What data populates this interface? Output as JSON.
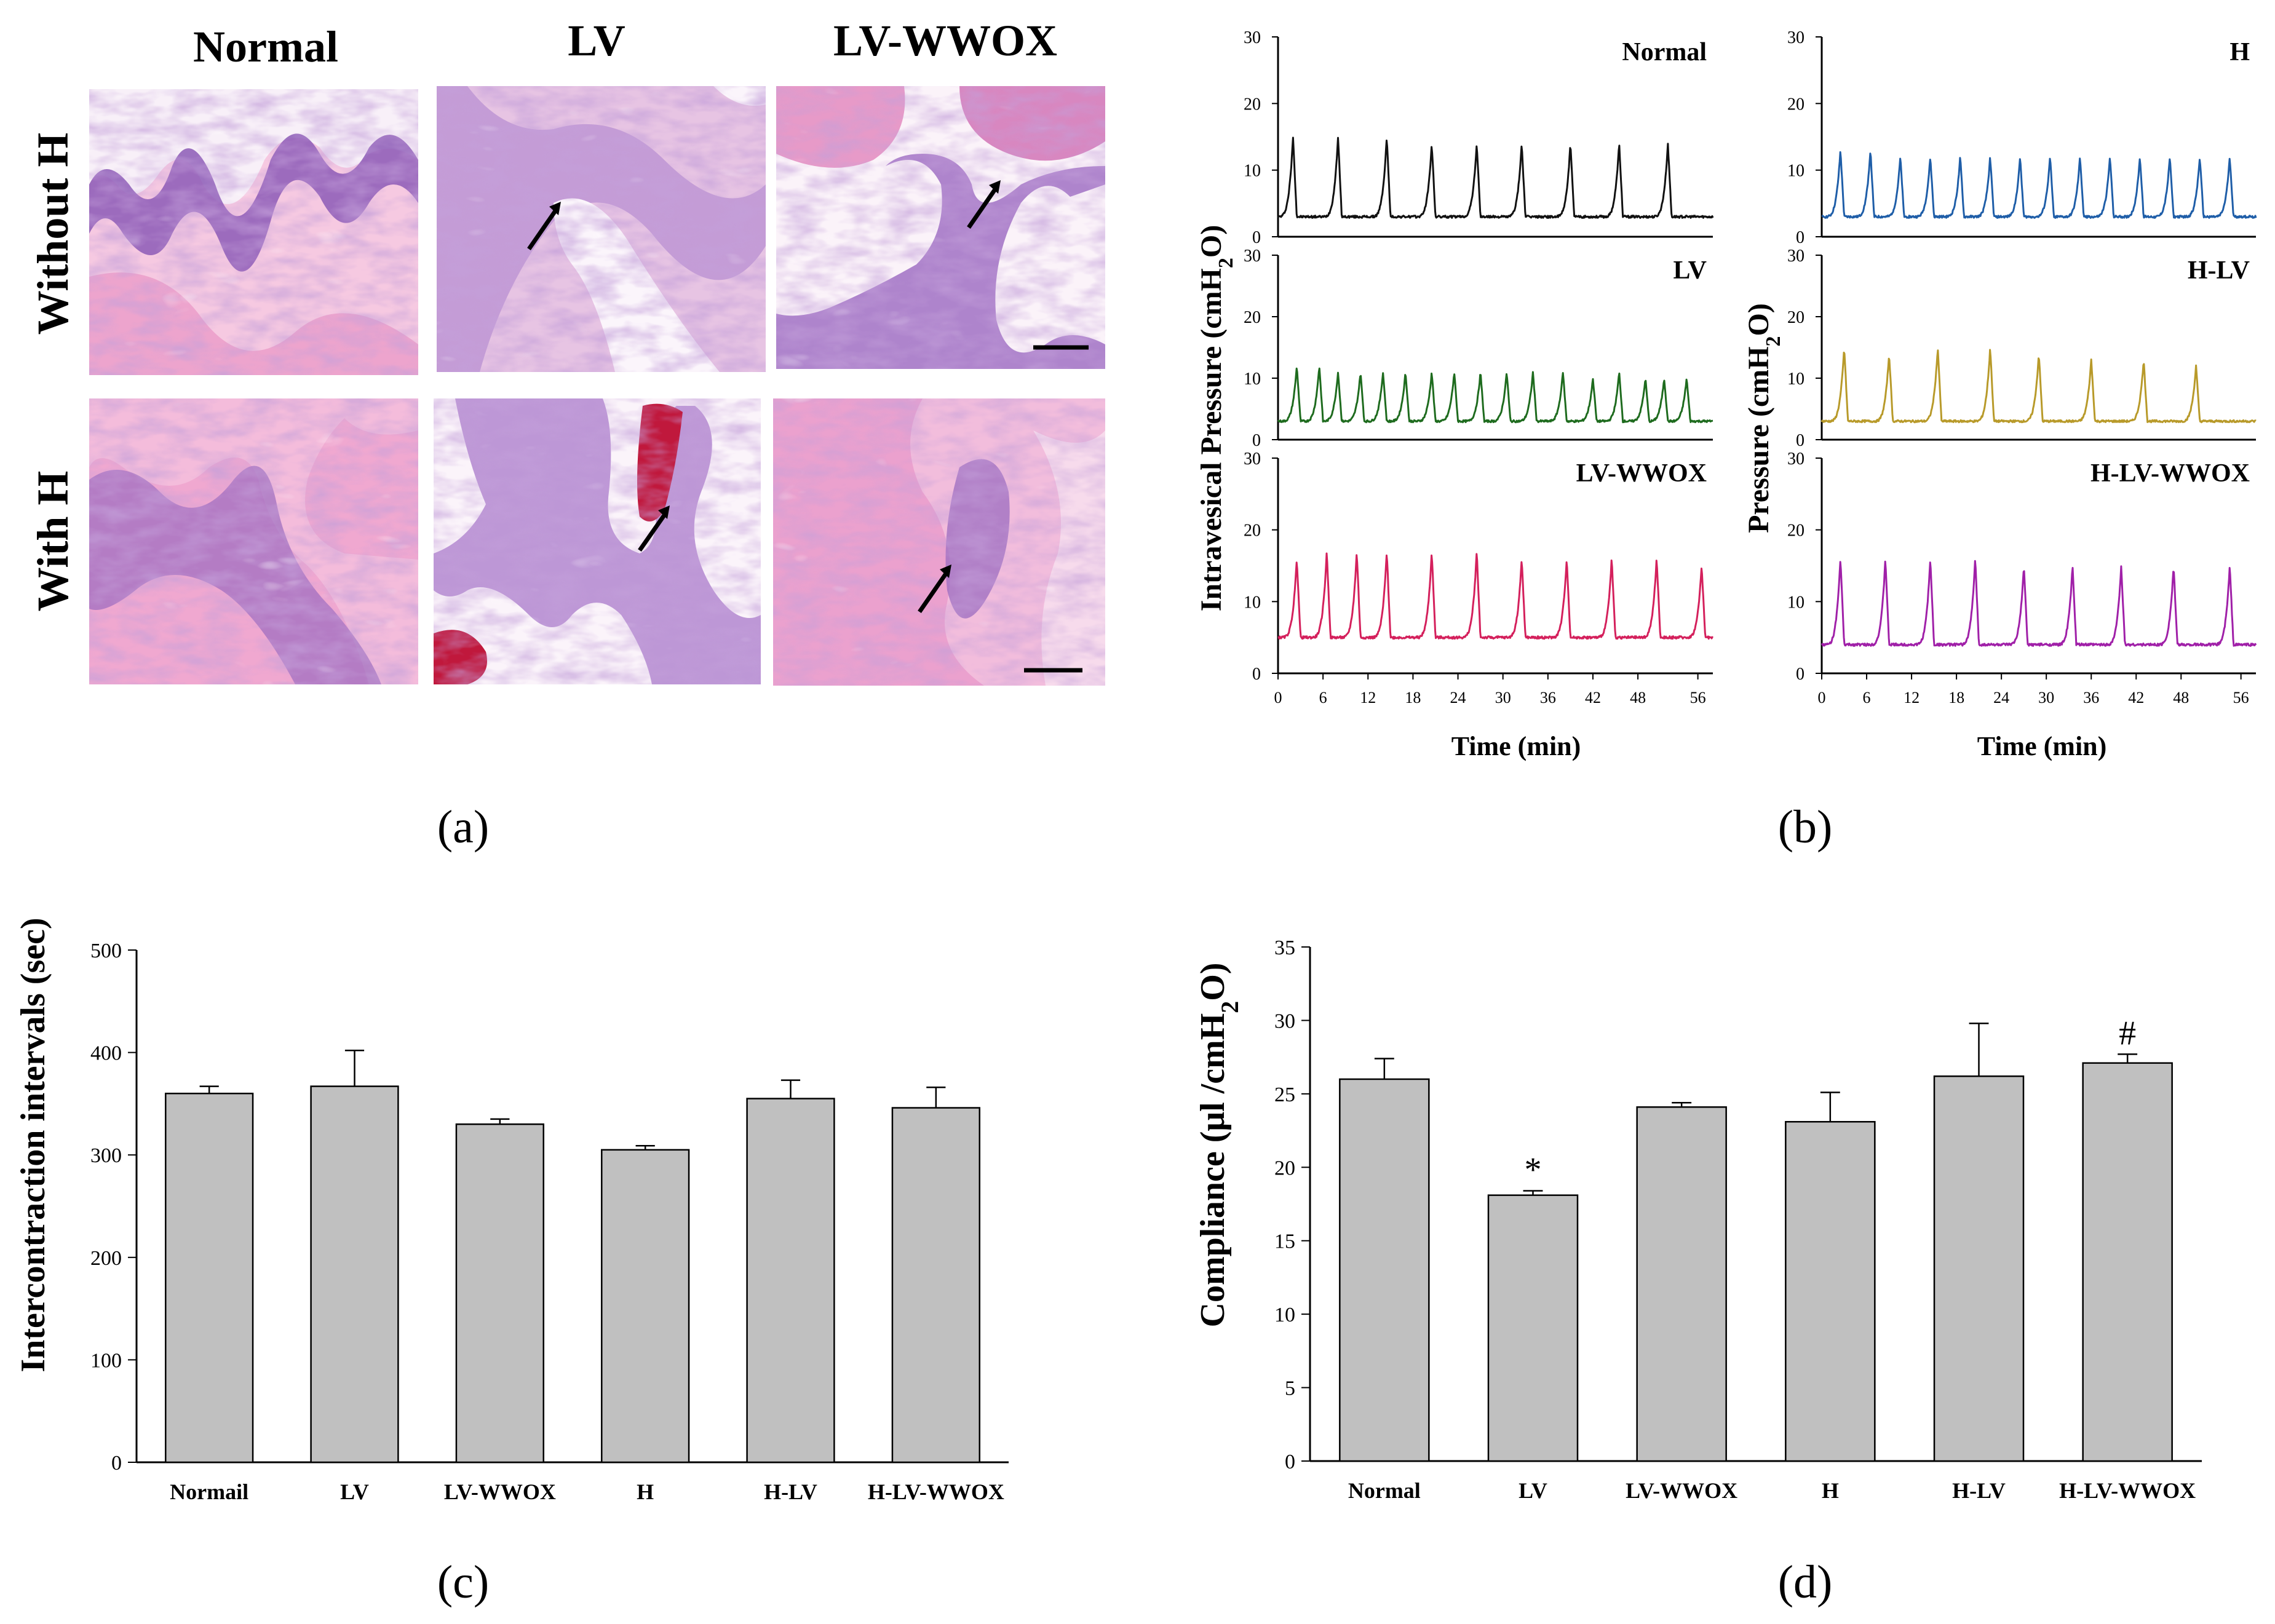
{
  "figure": {
    "panel_labels": [
      "(a)",
      "(b)",
      "(c)",
      "(d)"
    ]
  },
  "histology": {
    "col_headers": [
      "Normal",
      "LV",
      "LV-WWOX"
    ],
    "row_headers": [
      "Without H",
      "With H"
    ],
    "tiles": [
      {
        "group": "Normal",
        "condition": "Without H",
        "arrow": false,
        "scale_bar": false,
        "blood": false
      },
      {
        "group": "LV",
        "condition": "Without H",
        "arrow": true,
        "scale_bar": false,
        "blood": false
      },
      {
        "group": "LV-WWOX",
        "condition": "Without H",
        "arrow": true,
        "scale_bar": true,
        "blood": false
      },
      {
        "group": "Normal",
        "condition": "With H",
        "arrow": false,
        "scale_bar": false,
        "blood": false
      },
      {
        "group": "LV",
        "condition": "With H",
        "arrow": true,
        "scale_bar": false,
        "blood": true
      },
      {
        "group": "LV-WWOX",
        "condition": "With H",
        "arrow": true,
        "scale_bar": true,
        "blood": false
      }
    ],
    "colors": {
      "pink": "#f2b8d6",
      "purple": "#8a5fb0",
      "blood": "#c0183c"
    }
  },
  "cystometry": {
    "y_ticks": [
      0,
      10,
      20,
      30
    ],
    "ylim": [
      0,
      30
    ],
    "x_ticks": [
      0,
      6,
      12,
      18,
      24,
      30,
      36,
      42,
      48,
      56
    ],
    "xlim": [
      0,
      58
    ],
    "left": {
      "ylabel": "Intravesical Pressure (cmH2O)",
      "xlabel": "Time (min)",
      "traces": [
        {
          "name": "Normal",
          "color": "#111111",
          "baseline": 3,
          "peaks": [
            2,
            8,
            14.5,
            20.5,
            26.5,
            32.5,
            39,
            45.5,
            52
          ],
          "peak_heights": [
            15,
            15,
            15,
            14,
            14,
            14,
            14,
            14,
            14
          ]
        },
        {
          "name": "LV",
          "color": "#1e6b1e",
          "baseline": 3,
          "peaks": [
            2.5,
            5.5,
            8,
            11,
            14,
            17,
            20.5,
            23.5,
            27,
            30.5,
            34,
            38,
            42,
            45.5,
            49,
            51.5,
            54.5
          ],
          "peak_heights": [
            12,
            12,
            11,
            11,
            11,
            11,
            11,
            11,
            11,
            11,
            11,
            11,
            10,
            11,
            10,
            10,
            10
          ]
        },
        {
          "name": "LV-WWOX",
          "color": "#d4205c",
          "baseline": 5,
          "peaks": [
            2.5,
            6.5,
            10.5,
            14.5,
            20.5,
            26.5,
            32.5,
            38.5,
            44.5,
            50.5,
            56.5
          ],
          "peak_heights": [
            16,
            17,
            17,
            17,
            17,
            17,
            16,
            16,
            16,
            16,
            15
          ]
        }
      ]
    },
    "right": {
      "ylabel": "Pressure (cmH2O)",
      "xlabel": "Time (min)",
      "traces": [
        {
          "name": "H",
          "color": "#1f5ea8",
          "baseline": 3,
          "peaks": [
            2.5,
            6.5,
            10.5,
            14.5,
            18.5,
            22.5,
            26.5,
            30.5,
            34.5,
            38.5,
            42.5,
            46.5,
            50.5,
            54.5
          ],
          "peak_heights": [
            13,
            13,
            12,
            12,
            12,
            12,
            12,
            12,
            12,
            12,
            12,
            12,
            12,
            12
          ]
        },
        {
          "name": "H-LV",
          "color": "#b89a2a",
          "baseline": 3,
          "peaks": [
            3,
            9,
            15.5,
            22.5,
            29,
            36,
            43,
            50
          ],
          "peak_heights": [
            15,
            14,
            15,
            15,
            14,
            13,
            13,
            12
          ]
        },
        {
          "name": "H-LV-WWOX",
          "color": "#a020a8",
          "baseline": 4,
          "peaks": [
            2.5,
            8.5,
            14.5,
            20.5,
            27,
            33.5,
            40,
            47,
            54.5
          ],
          "peak_heights": [
            16,
            16,
            16,
            16,
            15,
            15,
            15,
            15,
            15
          ]
        }
      ]
    }
  },
  "chart_data": [
    {
      "type": "bar",
      "panel": "(c)",
      "title": "",
      "ylabel": "Intercontraction intervals (sec)",
      "xlabel": "",
      "categories": [
        "Normail",
        "LV",
        "LV-WWOX",
        "H",
        "H-LV",
        "H-LV-WWOX"
      ],
      "values": [
        360,
        367,
        330,
        305,
        355,
        346
      ],
      "errors": [
        7,
        35,
        5,
        4,
        18,
        20
      ],
      "annotations": [
        "",
        "",
        "",
        "",
        "",
        ""
      ],
      "ylim": [
        0,
        500
      ],
      "yticks": [
        0,
        100,
        200,
        300,
        400,
        500
      ],
      "bar_color": "#c0c0c0",
      "grid": false
    },
    {
      "type": "bar",
      "panel": "(d)",
      "title": "",
      "ylabel": "Compliance (μl /cmH2O)",
      "xlabel": "",
      "categories": [
        "Normal",
        "LV",
        "LV-WWOX",
        "H",
        "H-LV",
        "H-LV-WWOX"
      ],
      "values": [
        26,
        18.1,
        24.1,
        23.1,
        26.2,
        27.1
      ],
      "errors": [
        1.4,
        0.3,
        0.3,
        2.0,
        3.6,
        0.6
      ],
      "annotations": [
        "",
        "*",
        "",
        "",
        "",
        "#"
      ],
      "ylim": [
        0,
        35
      ],
      "yticks": [
        0,
        5,
        10,
        15,
        20,
        25,
        30,
        35
      ],
      "bar_color": "#c0c0c0",
      "grid": false
    }
  ]
}
